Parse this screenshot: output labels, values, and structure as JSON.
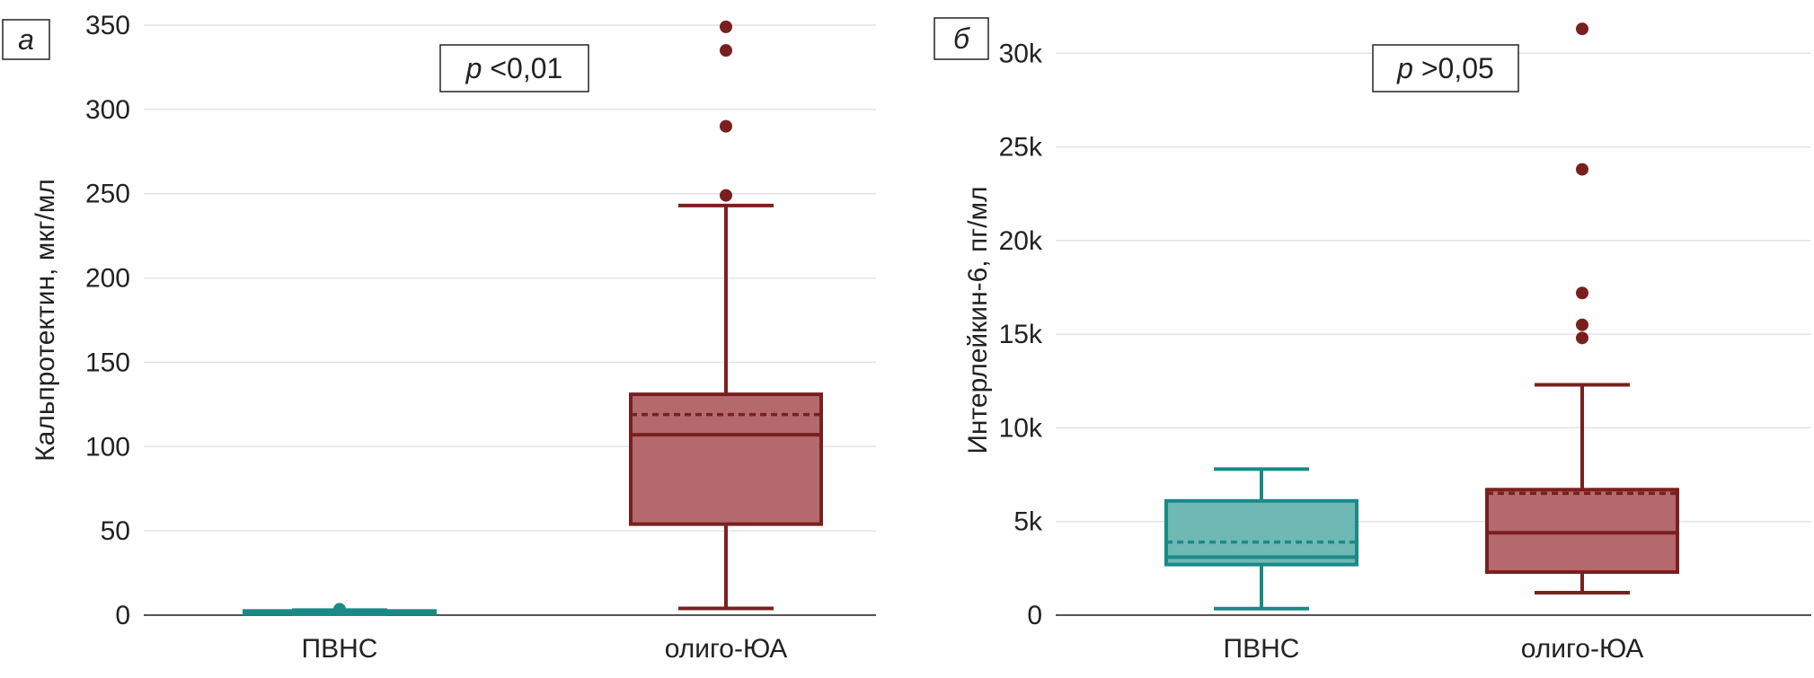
{
  "chart_data": [
    {
      "type": "box",
      "panel_label": "а",
      "ylabel": "Кальпротектин, мкг/мл",
      "ylim": [
        0,
        350
      ],
      "yticks": [
        0,
        50,
        100,
        150,
        200,
        250,
        300,
        350
      ],
      "ytick_labels": [
        "0",
        "50",
        "100",
        "150",
        "200",
        "250",
        "300",
        "350"
      ],
      "grid": true,
      "annotation": {
        "italic": "p",
        "text": " <0,01"
      },
      "categories": [
        "ПВНС",
        "олиго-ЮА"
      ],
      "boxes": [
        {
          "name": "ПВНС",
          "color": "#1a8a86",
          "fill": "#6fb8b4",
          "min": 0.5,
          "q1": 1,
          "median": 1.5,
          "mean": 1.8,
          "q3": 2.5,
          "max": 3,
          "outliers": [
            3.5
          ]
        },
        {
          "name": "олиго-ЮА",
          "color": "#7a1f1f",
          "fill": "#b46a6c",
          "min": 4,
          "q1": 54,
          "median": 107,
          "mean": 119,
          "q3": 131,
          "max": 243,
          "outliers": [
            249,
            290,
            335,
            349
          ]
        }
      ]
    },
    {
      "type": "box",
      "panel_label": "б",
      "ylabel": "Интерлейкин-6, пг/мл",
      "ylim": [
        0,
        31500
      ],
      "yticks": [
        0,
        5000,
        10000,
        15000,
        20000,
        25000,
        30000
      ],
      "ytick_labels": [
        "0",
        "5k",
        "10k",
        "15k",
        "20k",
        "25k",
        "30k"
      ],
      "grid": true,
      "annotation": {
        "italic": "p",
        "text": " >0,05"
      },
      "categories": [
        "ПВНС",
        "олиго-ЮА"
      ],
      "boxes": [
        {
          "name": "ПВНС",
          "color": "#1a8a86",
          "fill": "#6fb8b4",
          "min": 350,
          "q1": 2700,
          "median": 3100,
          "mean": 3900,
          "q3": 6100,
          "max": 7800,
          "outliers": []
        },
        {
          "name": "олиго-ЮА",
          "color": "#7a1f1f",
          "fill": "#b46a6c",
          "min": 1200,
          "q1": 2300,
          "median": 4400,
          "mean": 6500,
          "q3": 6700,
          "max": 12300,
          "outliers": [
            14800,
            15500,
            17200,
            23800,
            31300
          ]
        }
      ]
    }
  ]
}
